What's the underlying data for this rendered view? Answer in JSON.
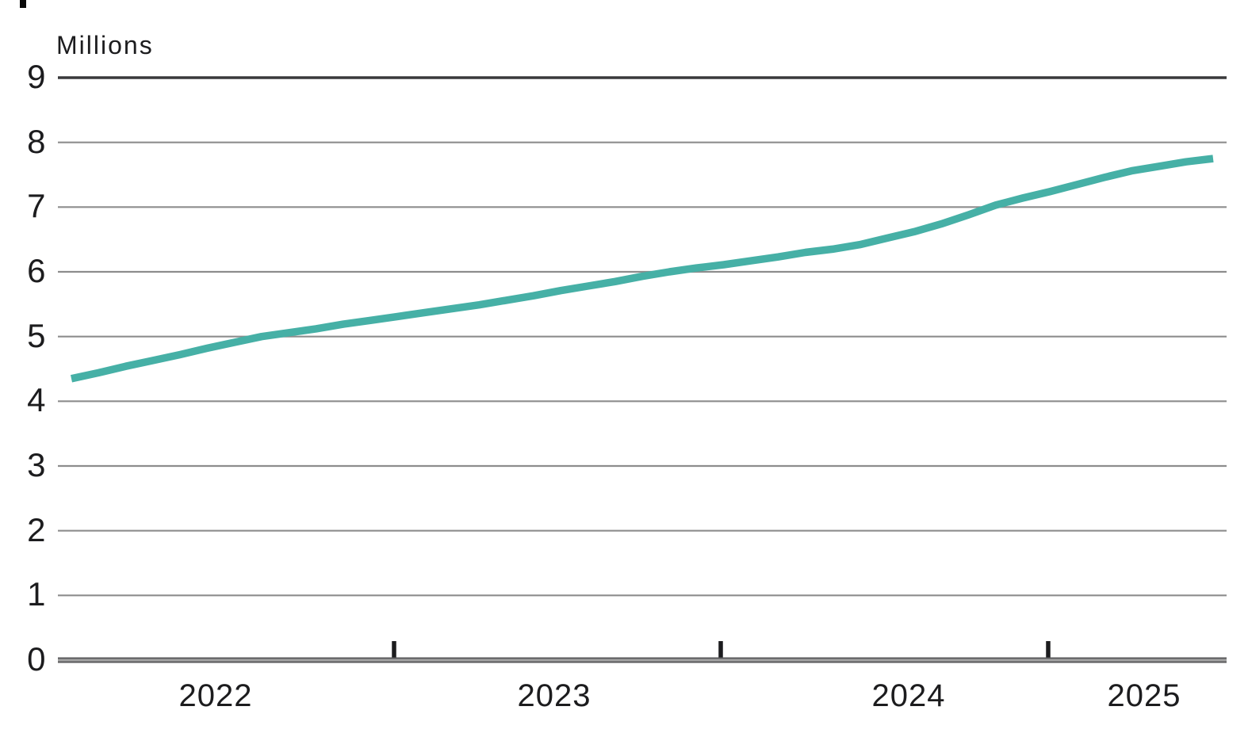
{
  "chart_data": {
    "type": "line",
    "title": "",
    "ylabel": "Millions",
    "xlabel": "",
    "ylim": [
      0,
      9
    ],
    "y_ticks": [
      0,
      1,
      2,
      3,
      4,
      5,
      6,
      7,
      8,
      9
    ],
    "grid": true,
    "legend": false,
    "frequency": "monthly",
    "x_year_labels": [
      "2022",
      "2023",
      "2024",
      "2025"
    ],
    "categories": [
      "2022-01",
      "2022-02",
      "2022-03",
      "2022-04",
      "2022-05",
      "2022-06",
      "2022-07",
      "2022-08",
      "2022-09",
      "2022-10",
      "2022-11",
      "2022-12",
      "2023-01",
      "2023-02",
      "2023-03",
      "2023-04",
      "2023-05",
      "2023-06",
      "2023-07",
      "2023-08",
      "2023-09",
      "2023-10",
      "2023-11",
      "2023-12",
      "2024-01",
      "2024-02",
      "2024-03",
      "2024-04",
      "2024-05",
      "2024-06",
      "2024-07",
      "2024-08",
      "2024-09",
      "2024-10",
      "2024-11",
      "2024-12",
      "2025-01",
      "2025-02",
      "2025-03",
      "2025-04",
      "2025-05",
      "2025-06",
      "2025-07"
    ],
    "values": [
      4.35,
      4.44,
      4.54,
      4.63,
      4.72,
      4.82,
      4.91,
      5.0,
      5.06,
      5.12,
      5.19,
      5.25,
      5.31,
      5.37,
      5.43,
      5.49,
      5.56,
      5.63,
      5.71,
      5.78,
      5.85,
      5.93,
      6.0,
      6.06,
      6.11,
      6.17,
      6.23,
      6.3,
      6.35,
      6.42,
      6.52,
      6.62,
      6.74,
      6.88,
      7.03,
      7.14,
      7.24,
      7.35,
      7.46,
      7.56,
      7.63,
      7.7,
      7.75
    ],
    "colors": {
      "series": "#46b0a6",
      "grid": "#8d8d8d",
      "top_line": "#39393b",
      "axis_dark": "#59595b",
      "axis_light": "#a3a3a3",
      "tick": "#1c1c1e",
      "text": "#1c1c1e"
    }
  }
}
